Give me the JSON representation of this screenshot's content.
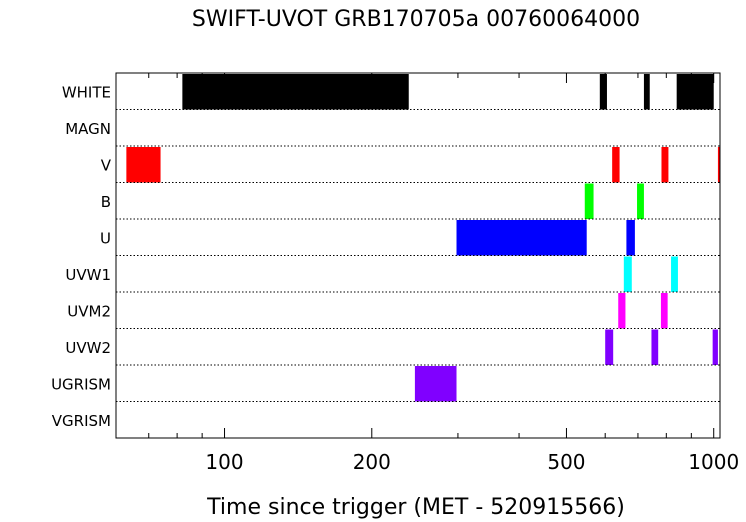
{
  "chart_data": {
    "type": "bar",
    "title": "SWIFT-UVOT GRB170705a 00760064000",
    "xlabel": "Time since trigger (MET - 520915566)",
    "ylabel": "",
    "x_scale": "log",
    "xlim": [
      60,
      1030
    ],
    "x_ticks": [
      100,
      200,
      500,
      1000
    ],
    "x_tick_labels": [
      "100",
      "200",
      "500",
      "1000"
    ],
    "grid": "dotted horizontal separators between filter rows",
    "rows": [
      {
        "name": "WHITE",
        "color": "#000000",
        "intervals": [
          [
            82,
            238
          ],
          [
            585,
            605
          ],
          [
            720,
            740
          ],
          [
            840,
            1000
          ]
        ]
      },
      {
        "name": "MAGN",
        "color": "#000000",
        "intervals": []
      },
      {
        "name": "V",
        "color": "#ff0000",
        "intervals": [
          [
            63,
            74
          ],
          [
            620,
            642
          ],
          [
            782,
            808
          ],
          [
            1020,
            1035
          ]
        ]
      },
      {
        "name": "B",
        "color": "#00ff00",
        "intervals": [
          [
            545,
            568
          ],
          [
            697,
            720
          ]
        ]
      },
      {
        "name": "U",
        "color": "#0000ff",
        "intervals": [
          [
            298,
            550
          ],
          [
            663,
            690
          ]
        ]
      },
      {
        "name": "UVW1",
        "color": "#00ffff",
        "intervals": [
          [
            655,
            680
          ],
          [
            818,
            845
          ]
        ]
      },
      {
        "name": "UVM2",
        "color": "#ff00ff",
        "intervals": [
          [
            638,
            660
          ],
          [
            780,
            805
          ]
        ]
      },
      {
        "name": "UVW2",
        "color": "#8000ff",
        "intervals": [
          [
            600,
            623
          ],
          [
            746,
            770
          ],
          [
            995,
            1020
          ]
        ]
      },
      {
        "name": "UGRISM",
        "color": "#8000ff",
        "intervals": [
          [
            245,
            298
          ]
        ]
      },
      {
        "name": "VGRISM",
        "color": "#8000ff",
        "intervals": []
      }
    ]
  }
}
